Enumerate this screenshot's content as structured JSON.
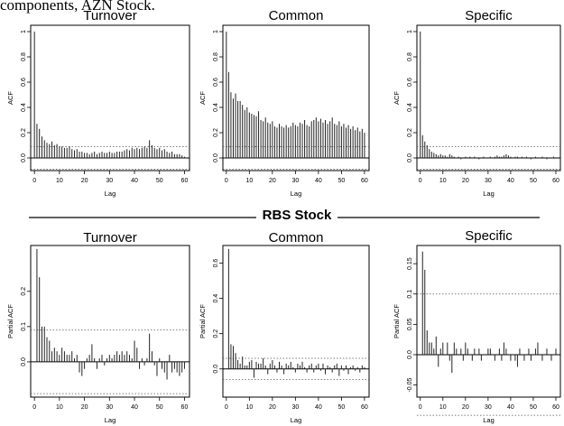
{
  "heading": "components, AZN Stock.",
  "divider_label": "RBS Stock",
  "chart_data": [
    {
      "type": "bar",
      "title": "Turnover",
      "xlabel": "Lag",
      "ylabel": "ACF",
      "xticks": [
        0,
        10,
        20,
        30,
        40,
        50,
        60
      ],
      "xlim": [
        -1.5,
        62
      ],
      "yticks": [
        0.0,
        0.2,
        0.4,
        0.6,
        0.8,
        1.0
      ],
      "ylim": [
        -0.1,
        1.05
      ],
      "ci": 0.09,
      "line_at": 0.0,
      "values": [
        1.0,
        0.27,
        0.23,
        0.17,
        0.14,
        0.12,
        0.11,
        0.13,
        0.1,
        0.11,
        0.09,
        0.09,
        0.08,
        0.08,
        0.09,
        0.07,
        0.06,
        0.07,
        0.05,
        0.05,
        0.04,
        0.04,
        0.03,
        0.04,
        0.05,
        0.03,
        0.04,
        0.05,
        0.04,
        0.04,
        0.05,
        0.04,
        0.04,
        0.05,
        0.05,
        0.05,
        0.06,
        0.07,
        0.06,
        0.08,
        0.07,
        0.08,
        0.07,
        0.08,
        0.09,
        0.08,
        0.14,
        0.1,
        0.08,
        0.07,
        0.08,
        0.06,
        0.07,
        0.05,
        0.04,
        0.05,
        0.03,
        0.03,
        0.03,
        0.02,
        0.01
      ]
    },
    {
      "type": "bar",
      "title": "Common",
      "xlabel": "Lag",
      "ylabel": "ACF",
      "xticks": [
        0,
        10,
        20,
        30,
        40,
        50,
        60
      ],
      "xlim": [
        -1.5,
        62
      ],
      "yticks": [
        0.0,
        0.2,
        0.4,
        0.6,
        0.8,
        1.0
      ],
      "ylim": [
        -0.1,
        1.05
      ],
      "ci": 0.09,
      "line_at": 0.0,
      "values": [
        1.0,
        0.68,
        0.52,
        0.47,
        0.51,
        0.45,
        0.45,
        0.42,
        0.38,
        0.4,
        0.36,
        0.35,
        0.34,
        0.33,
        0.37,
        0.3,
        0.29,
        0.32,
        0.28,
        0.27,
        0.29,
        0.25,
        0.24,
        0.27,
        0.25,
        0.24,
        0.26,
        0.24,
        0.25,
        0.28,
        0.26,
        0.25,
        0.28,
        0.27,
        0.3,
        0.26,
        0.25,
        0.29,
        0.3,
        0.32,
        0.29,
        0.31,
        0.28,
        0.3,
        0.27,
        0.29,
        0.32,
        0.27,
        0.26,
        0.29,
        0.25,
        0.27,
        0.24,
        0.26,
        0.23,
        0.25,
        0.22,
        0.24,
        0.21,
        0.23,
        0.2
      ]
    },
    {
      "type": "bar",
      "title": "Specific",
      "xlabel": "Lag",
      "ylabel": "ACF",
      "xticks": [
        0,
        10,
        20,
        30,
        40,
        50,
        60
      ],
      "xlim": [
        -1.5,
        62
      ],
      "yticks": [
        0.0,
        0.2,
        0.4,
        0.6,
        0.8,
        1.0
      ],
      "ylim": [
        -0.1,
        1.05
      ],
      "ci": 0.09,
      "line_at": 0.0,
      "values": [
        1.0,
        0.18,
        0.13,
        0.1,
        0.07,
        0.05,
        0.04,
        0.03,
        0.02,
        0.03,
        0.02,
        0.02,
        0.01,
        0.03,
        0.02,
        0.01,
        0.0,
        0.01,
        -0.01,
        0.0,
        0.01,
        0.0,
        0.01,
        0.0,
        0.01,
        0.0,
        -0.01,
        0.0,
        0.01,
        0.0,
        0.0,
        0.01,
        0.0,
        0.01,
        0.02,
        0.01,
        0.01,
        0.02,
        0.03,
        0.02,
        0.01,
        0.0,
        0.01,
        0.01,
        0.0,
        0.01,
        0.0,
        0.01,
        0.0,
        -0.01,
        0.0,
        0.01,
        0.0,
        0.0,
        0.01,
        0.0,
        -0.01,
        0.0,
        0.0,
        0.01,
        0.0
      ]
    },
    {
      "type": "bar",
      "title": "Turnover",
      "xlabel": "Lag",
      "ylabel": "Partial ACF",
      "xticks": [
        0,
        10,
        20,
        30,
        40,
        50,
        60
      ],
      "xlim": [
        -1.5,
        62
      ],
      "yticks": [
        0.0,
        0.1,
        0.2
      ],
      "ylim": [
        -0.1,
        0.33
      ],
      "ci": 0.09,
      "line_at": 0.0,
      "values": [
        0,
        0.32,
        0.24,
        0.1,
        0.1,
        0.07,
        0.06,
        0.03,
        0.04,
        0.03,
        0.02,
        0.04,
        0.03,
        0.02,
        0.02,
        0.03,
        0.01,
        0.02,
        -0.03,
        -0.04,
        -0.02,
        0.01,
        0.02,
        0.05,
        0.01,
        -0.02,
        0.01,
        0.02,
        -0.01,
        0.01,
        0.02,
        0.01,
        0.02,
        0.03,
        0.02,
        0.03,
        0.02,
        0.03,
        0.02,
        0.01,
        0.06,
        0.04,
        -0.02,
        0.01,
        -0.01,
        0.01,
        0.08,
        0.03,
        -0.01,
        -0.04,
        0.01,
        -0.02,
        -0.03,
        -0.05,
        0.02,
        -0.03,
        -0.02,
        -0.03,
        -0.04,
        -0.03,
        -0.02
      ]
    },
    {
      "type": "bar",
      "title": "Common",
      "xlabel": "Lag",
      "ylabel": "Partial ACF",
      "xticks": [
        0,
        10,
        20,
        30,
        40,
        50,
        60
      ],
      "xlim": [
        -1.5,
        62
      ],
      "yticks": [
        0.0,
        0.2,
        0.4,
        0.6
      ],
      "ylim": [
        -0.16,
        0.7
      ],
      "ci": 0.06,
      "line_at": 0.0,
      "values": [
        0,
        0.68,
        0.14,
        0.13,
        0.09,
        0.05,
        0.03,
        0.07,
        0.02,
        0.02,
        0.04,
        0.05,
        -0.05,
        0.04,
        0.03,
        0.03,
        0.06,
        0.02,
        -0.03,
        0.03,
        0.05,
        0.02,
        -0.02,
        0.04,
        0.02,
        -0.03,
        0.03,
        0.02,
        0.04,
        0.01,
        -0.02,
        0.03,
        0.02,
        0.04,
        0.01,
        -0.02,
        0.02,
        0.03,
        -0.02,
        0.02,
        0.03,
        -0.01,
        0.03,
        -0.03,
        0.02,
        0.01,
        -0.02,
        0.02,
        0.03,
        -0.04,
        0.02,
        -0.01,
        0.02,
        -0.03,
        0.01,
        0.02,
        -0.01,
        0.01,
        -0.02,
        0.02,
        0.01
      ]
    },
    {
      "type": "bar",
      "title": "Specific",
      "xlabel": "Lag",
      "ylabel": "Partial ACF",
      "xticks": [
        0,
        10,
        20,
        30,
        40,
        50,
        60
      ],
      "xlim": [
        -1.5,
        62
      ],
      "yticks": [
        -0.05,
        0.0,
        0.05,
        0.1,
        0.15
      ],
      "ylim": [
        -0.07,
        0.18
      ],
      "ci": 0.1,
      "line_at": 0.0,
      "values": [
        0,
        0.17,
        0.14,
        0.04,
        0.02,
        0.02,
        0.01,
        0.03,
        -0.02,
        0.01,
        0.02,
        0.0,
        0.02,
        -0.01,
        -0.03,
        0.02,
        0.01,
        0.0,
        0.01,
        -0.01,
        0.02,
        0.01,
        0.0,
        -0.01,
        0.01,
        0.0,
        0.01,
        -0.01,
        0.0,
        0.0,
        0.01,
        0.01,
        0.0,
        -0.01,
        0.0,
        0.01,
        -0.01,
        0.02,
        0.01,
        0.0,
        -0.01,
        0.0,
        -0.01,
        -0.02,
        0.01,
        0.0,
        -0.01,
        0.0,
        0.01,
        -0.01,
        0.0,
        0.01,
        0.02,
        0.0,
        -0.01,
        0.0,
        0.01,
        0.0,
        -0.01,
        0.0,
        0.01
      ]
    }
  ]
}
